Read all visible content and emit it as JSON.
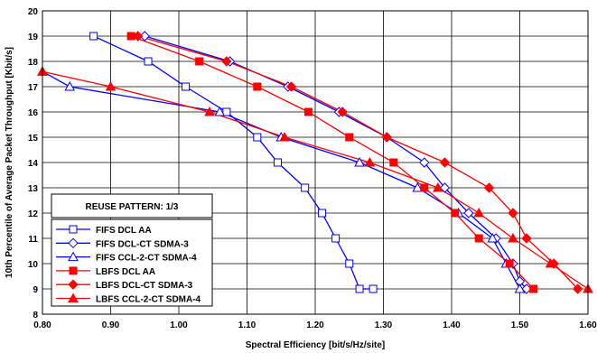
{
  "chart_data": {
    "type": "line",
    "title": "",
    "xlabel": "Spectral Efficiency [bit/s/Hz/site]",
    "ylabel": "10th Percentile of Average Packet Throughput [Kbit/s]",
    "xlim": [
      0.8,
      1.6
    ],
    "ylim": [
      8,
      20
    ],
    "x_ticks": [
      "0.80",
      "0.90",
      "1.00",
      "1.10",
      "1.20",
      "1.30",
      "1.40",
      "1.50",
      "1.60"
    ],
    "y_ticks": [
      "8",
      "9",
      "10",
      "11",
      "12",
      "13",
      "14",
      "15",
      "16",
      "17",
      "18",
      "19",
      "20"
    ],
    "grid": true,
    "legend_title": "REUSE PATTERN: 1/3",
    "legend_position": "bottom-left",
    "series": [
      {
        "name": "FIFS DCL AA",
        "color": "#0000ff",
        "marker": "square-open",
        "x": [
          0.875,
          0.955,
          1.01,
          1.07,
          1.115,
          1.145,
          1.185,
          1.21,
          1.23,
          1.25,
          1.265,
          1.285
        ],
        "y": [
          19,
          18,
          17,
          16,
          15,
          14,
          13,
          12,
          11,
          10,
          9,
          9
        ]
      },
      {
        "name": "FIFS DCL-CT SDMA-3",
        "color": "#0000ff",
        "marker": "diamond-open",
        "x": [
          0.95,
          1.075,
          1.16,
          1.235,
          1.305,
          1.36,
          1.39,
          1.425,
          1.465,
          1.49,
          1.5,
          1.51
        ],
        "y": [
          19,
          18,
          17,
          16,
          15,
          14,
          13,
          12,
          11,
          10,
          9.3,
          9
        ]
      },
      {
        "name": "FIFS CCL-2-CT SDMA-4",
        "color": "#0000ff",
        "marker": "triangle-open",
        "x": [
          0.8,
          0.84,
          1.06,
          1.15,
          1.265,
          1.35,
          1.41,
          1.46,
          1.48,
          1.5
        ],
        "y": [
          17.6,
          17,
          16,
          15,
          14,
          13,
          12,
          11,
          10,
          9
        ]
      },
      {
        "name": "LBFS DCL AA",
        "color": "#ff0000",
        "marker": "square-filled",
        "x": [
          0.93,
          1.03,
          1.115,
          1.19,
          1.25,
          1.315,
          1.36,
          1.405,
          1.44,
          1.485,
          1.52
        ],
        "y": [
          19,
          18,
          17,
          16,
          15,
          14,
          13,
          12,
          11,
          10,
          9
        ]
      },
      {
        "name": "LBFS DCL-CT SDMA-3",
        "color": "#ff0000",
        "marker": "diamond-filled",
        "x": [
          0.94,
          1.07,
          1.165,
          1.24,
          1.305,
          1.39,
          1.455,
          1.49,
          1.51,
          1.55,
          1.585
        ],
        "y": [
          19,
          18,
          17,
          16,
          15,
          14,
          13,
          12,
          11,
          10,
          9
        ]
      },
      {
        "name": "LBFS CCL-2-CT SDMA-4",
        "color": "#ff0000",
        "marker": "triangle-filled",
        "x": [
          0.8,
          0.9,
          1.045,
          1.155,
          1.28,
          1.38,
          1.44,
          1.49,
          1.545,
          1.6
        ],
        "y": [
          17.6,
          17,
          16,
          15,
          14,
          13,
          12,
          11,
          10,
          9
        ]
      }
    ]
  }
}
